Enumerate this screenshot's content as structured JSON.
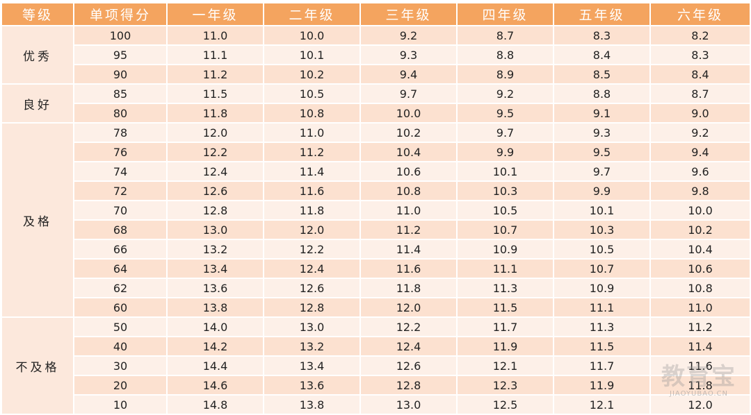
{
  "colors": {
    "header_bg": "#F4A45F",
    "row_dark": "#FCE1D0",
    "row_light": "#FDF0E8",
    "level_bg": "#FCE8DC",
    "text": "#222222",
    "header_text": "#FFFFFF"
  },
  "header": {
    "columns": [
      "等级",
      "单项得分",
      "一年级",
      "二年级",
      "三年级",
      "四年级",
      "五年级",
      "六年级"
    ]
  },
  "groups": [
    {
      "level": "优秀",
      "rows": [
        {
          "score": "100",
          "values": [
            "11.0",
            "10.0",
            "9.2",
            "8.7",
            "8.3",
            "8.2"
          ]
        },
        {
          "score": "95",
          "values": [
            "11.1",
            "10.1",
            "9.3",
            "8.8",
            "8.4",
            "8.3"
          ]
        },
        {
          "score": "90",
          "values": [
            "11.2",
            "10.2",
            "9.4",
            "8.9",
            "8.5",
            "8.4"
          ]
        }
      ]
    },
    {
      "level": "良好",
      "rows": [
        {
          "score": "85",
          "values": [
            "11.5",
            "10.5",
            "9.7",
            "9.2",
            "8.8",
            "8.7"
          ]
        },
        {
          "score": "80",
          "values": [
            "11.8",
            "10.8",
            "10.0",
            "9.5",
            "9.1",
            "9.0"
          ]
        }
      ]
    },
    {
      "level": "及格",
      "rows": [
        {
          "score": "78",
          "values": [
            "12.0",
            "11.0",
            "10.2",
            "9.7",
            "9.3",
            "9.2"
          ]
        },
        {
          "score": "76",
          "values": [
            "12.2",
            "11.2",
            "10.4",
            "9.9",
            "9.5",
            "9.4"
          ]
        },
        {
          "score": "74",
          "values": [
            "12.4",
            "11.4",
            "10.6",
            "10.1",
            "9.7",
            "9.6"
          ]
        },
        {
          "score": "72",
          "values": [
            "12.6",
            "11.6",
            "10.8",
            "10.3",
            "9.9",
            "9.8"
          ]
        },
        {
          "score": "70",
          "values": [
            "12.8",
            "11.8",
            "11.0",
            "10.5",
            "10.1",
            "10.0"
          ]
        },
        {
          "score": "68",
          "values": [
            "13.0",
            "12.0",
            "11.2",
            "10.7",
            "10.3",
            "10.2"
          ]
        },
        {
          "score": "66",
          "values": [
            "13.2",
            "12.2",
            "11.4",
            "10.9",
            "10.5",
            "10.4"
          ]
        },
        {
          "score": "64",
          "values": [
            "13.4",
            "12.4",
            "11.6",
            "11.1",
            "10.7",
            "10.6"
          ]
        },
        {
          "score": "62",
          "values": [
            "13.6",
            "12.6",
            "11.8",
            "11.3",
            "10.9",
            "10.8"
          ]
        },
        {
          "score": "60",
          "values": [
            "13.8",
            "12.8",
            "12.0",
            "11.5",
            "11.1",
            "11.0"
          ]
        }
      ]
    },
    {
      "level": "不及格",
      "rows": [
        {
          "score": "50",
          "values": [
            "14.0",
            "13.0",
            "12.2",
            "11.7",
            "11.3",
            "11.2"
          ]
        },
        {
          "score": "40",
          "values": [
            "14.2",
            "13.2",
            "12.4",
            "11.9",
            "11.5",
            "11.4"
          ]
        },
        {
          "score": "30",
          "values": [
            "14.4",
            "13.4",
            "12.6",
            "12.1",
            "11.7",
            "11.6"
          ]
        },
        {
          "score": "20",
          "values": [
            "14.6",
            "13.6",
            "12.8",
            "12.3",
            "11.9",
            "11.8"
          ]
        },
        {
          "score": "10",
          "values": [
            "14.8",
            "13.8",
            "13.0",
            "12.5",
            "12.1",
            "12.0"
          ]
        }
      ]
    }
  ],
  "watermark": {
    "logo": "教育宝",
    "domain": "JIAOYUBAO.CN"
  }
}
